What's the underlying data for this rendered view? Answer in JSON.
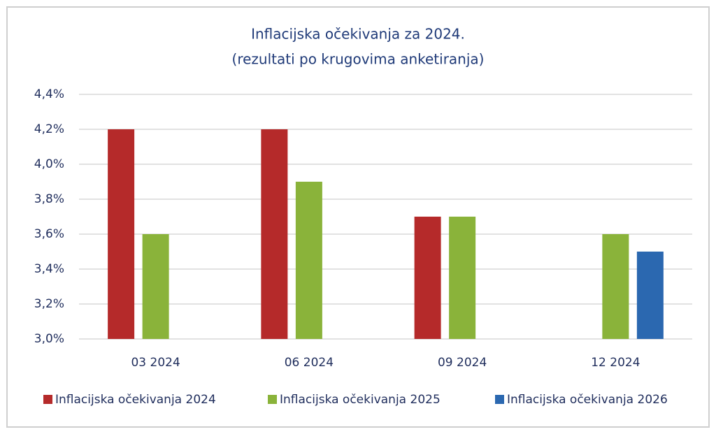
{
  "chart_data": {
    "type": "bar",
    "title": "Inflacijska očekivanja za 2024.",
    "subtitle": "(rezultati po krugovima anketiranja)",
    "categories": [
      "03 2024",
      "06 2024",
      "09 2024",
      "12 2024"
    ],
    "series": [
      {
        "name": "Inflacijska očekivanja 2024",
        "color": "#b52a2a",
        "values": [
          4.2,
          4.2,
          3.7,
          null
        ]
      },
      {
        "name": "Inflacijska očekivanja 2025",
        "color": "#8ab33a",
        "values": [
          3.6,
          3.9,
          3.7,
          3.6
        ]
      },
      {
        "name": "Inflacijska očekivanja 2026",
        "color": "#2b68b0",
        "values": [
          null,
          null,
          null,
          3.5
        ]
      }
    ],
    "ylim": [
      3.0,
      4.4
    ],
    "yticks": [
      {
        "value": 3.0,
        "label": "3,0%"
      },
      {
        "value": 3.2,
        "label": "3,2%"
      },
      {
        "value": 3.4,
        "label": "3,4%"
      },
      {
        "value": 3.6,
        "label": "3,6%"
      },
      {
        "value": 3.8,
        "label": "3,8%"
      },
      {
        "value": 4.0,
        "label": "4,0%"
      },
      {
        "value": 4.2,
        "label": "4,2%"
      },
      {
        "value": 4.4,
        "label": "4,4%"
      }
    ],
    "grid": true,
    "legend": "bottom"
  }
}
